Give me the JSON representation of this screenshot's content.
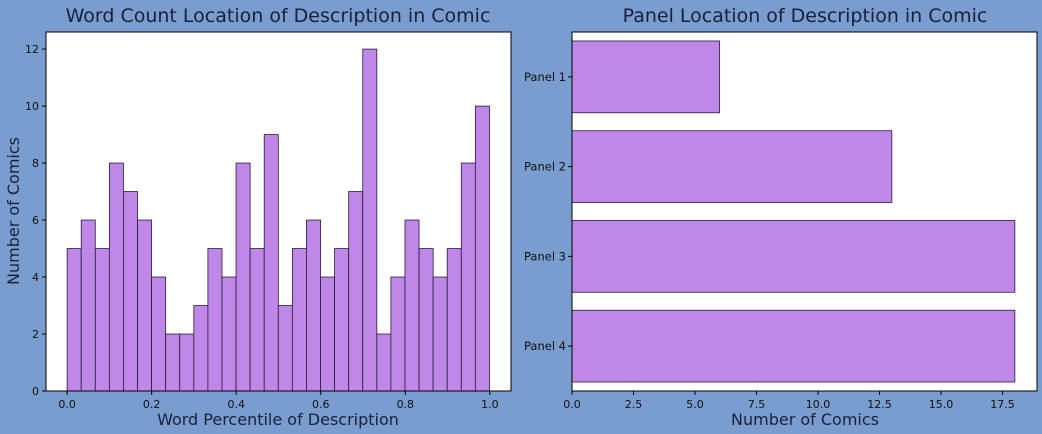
{
  "colors": {
    "page_background": "#799dcf",
    "plot_background": "#ffffff",
    "bar_fill": "#bf88e8",
    "bar_edge": "#2a1a3a"
  },
  "chart_data": [
    {
      "type": "bar",
      "subtype": "histogram",
      "title": "Word Count Location of Description in Comic",
      "xlabel": "Word Percentile of Description",
      "ylabel": "Number of Comics",
      "bin_start": 0.0,
      "bin_width": 0.0333,
      "values": [
        5,
        6,
        5,
        8,
        7,
        6,
        4,
        2,
        2,
        3,
        5,
        4,
        8,
        5,
        9,
        3,
        5,
        6,
        4,
        5,
        7,
        12,
        2,
        4,
        6,
        5,
        4,
        5,
        8,
        10
      ],
      "xlim": [
        -0.05,
        1.05
      ],
      "ylim": [
        0,
        12.6
      ],
      "xticks": [
        {
          "value": 0.0,
          "label": "0.0"
        },
        {
          "value": 0.2,
          "label": "0.2"
        },
        {
          "value": 0.4,
          "label": "0.4"
        },
        {
          "value": 0.6,
          "label": "0.6"
        },
        {
          "value": 0.8,
          "label": "0.8"
        },
        {
          "value": 1.0,
          "label": "1.0"
        }
      ],
      "yticks": [
        {
          "value": 0,
          "label": "0"
        },
        {
          "value": 2,
          "label": "2"
        },
        {
          "value": 4,
          "label": "4"
        },
        {
          "value": 6,
          "label": "6"
        },
        {
          "value": 8,
          "label": "8"
        },
        {
          "value": 10,
          "label": "10"
        },
        {
          "value": 12,
          "label": "12"
        }
      ],
      "grid": false
    },
    {
      "type": "bar",
      "orientation": "horizontal",
      "title": "Panel Location of Description in Comic",
      "xlabel": "Number of Comics",
      "ylabel": "",
      "categories": [
        "Panel 1",
        "Panel 2",
        "Panel 3",
        "Panel 4"
      ],
      "values": [
        6,
        13,
        18,
        18
      ],
      "xlim": [
        0,
        18.9
      ],
      "xticks": [
        {
          "value": 0,
          "label": "0.0"
        },
        {
          "value": 2.5,
          "label": "2.5"
        },
        {
          "value": 5,
          "label": "5.0"
        },
        {
          "value": 7.5,
          "label": "7.5"
        },
        {
          "value": 10,
          "label": "10.0"
        },
        {
          "value": 12.5,
          "label": "12.5"
        },
        {
          "value": 15,
          "label": "15.0"
        },
        {
          "value": 17.5,
          "label": "17.5"
        }
      ],
      "grid": false
    }
  ]
}
